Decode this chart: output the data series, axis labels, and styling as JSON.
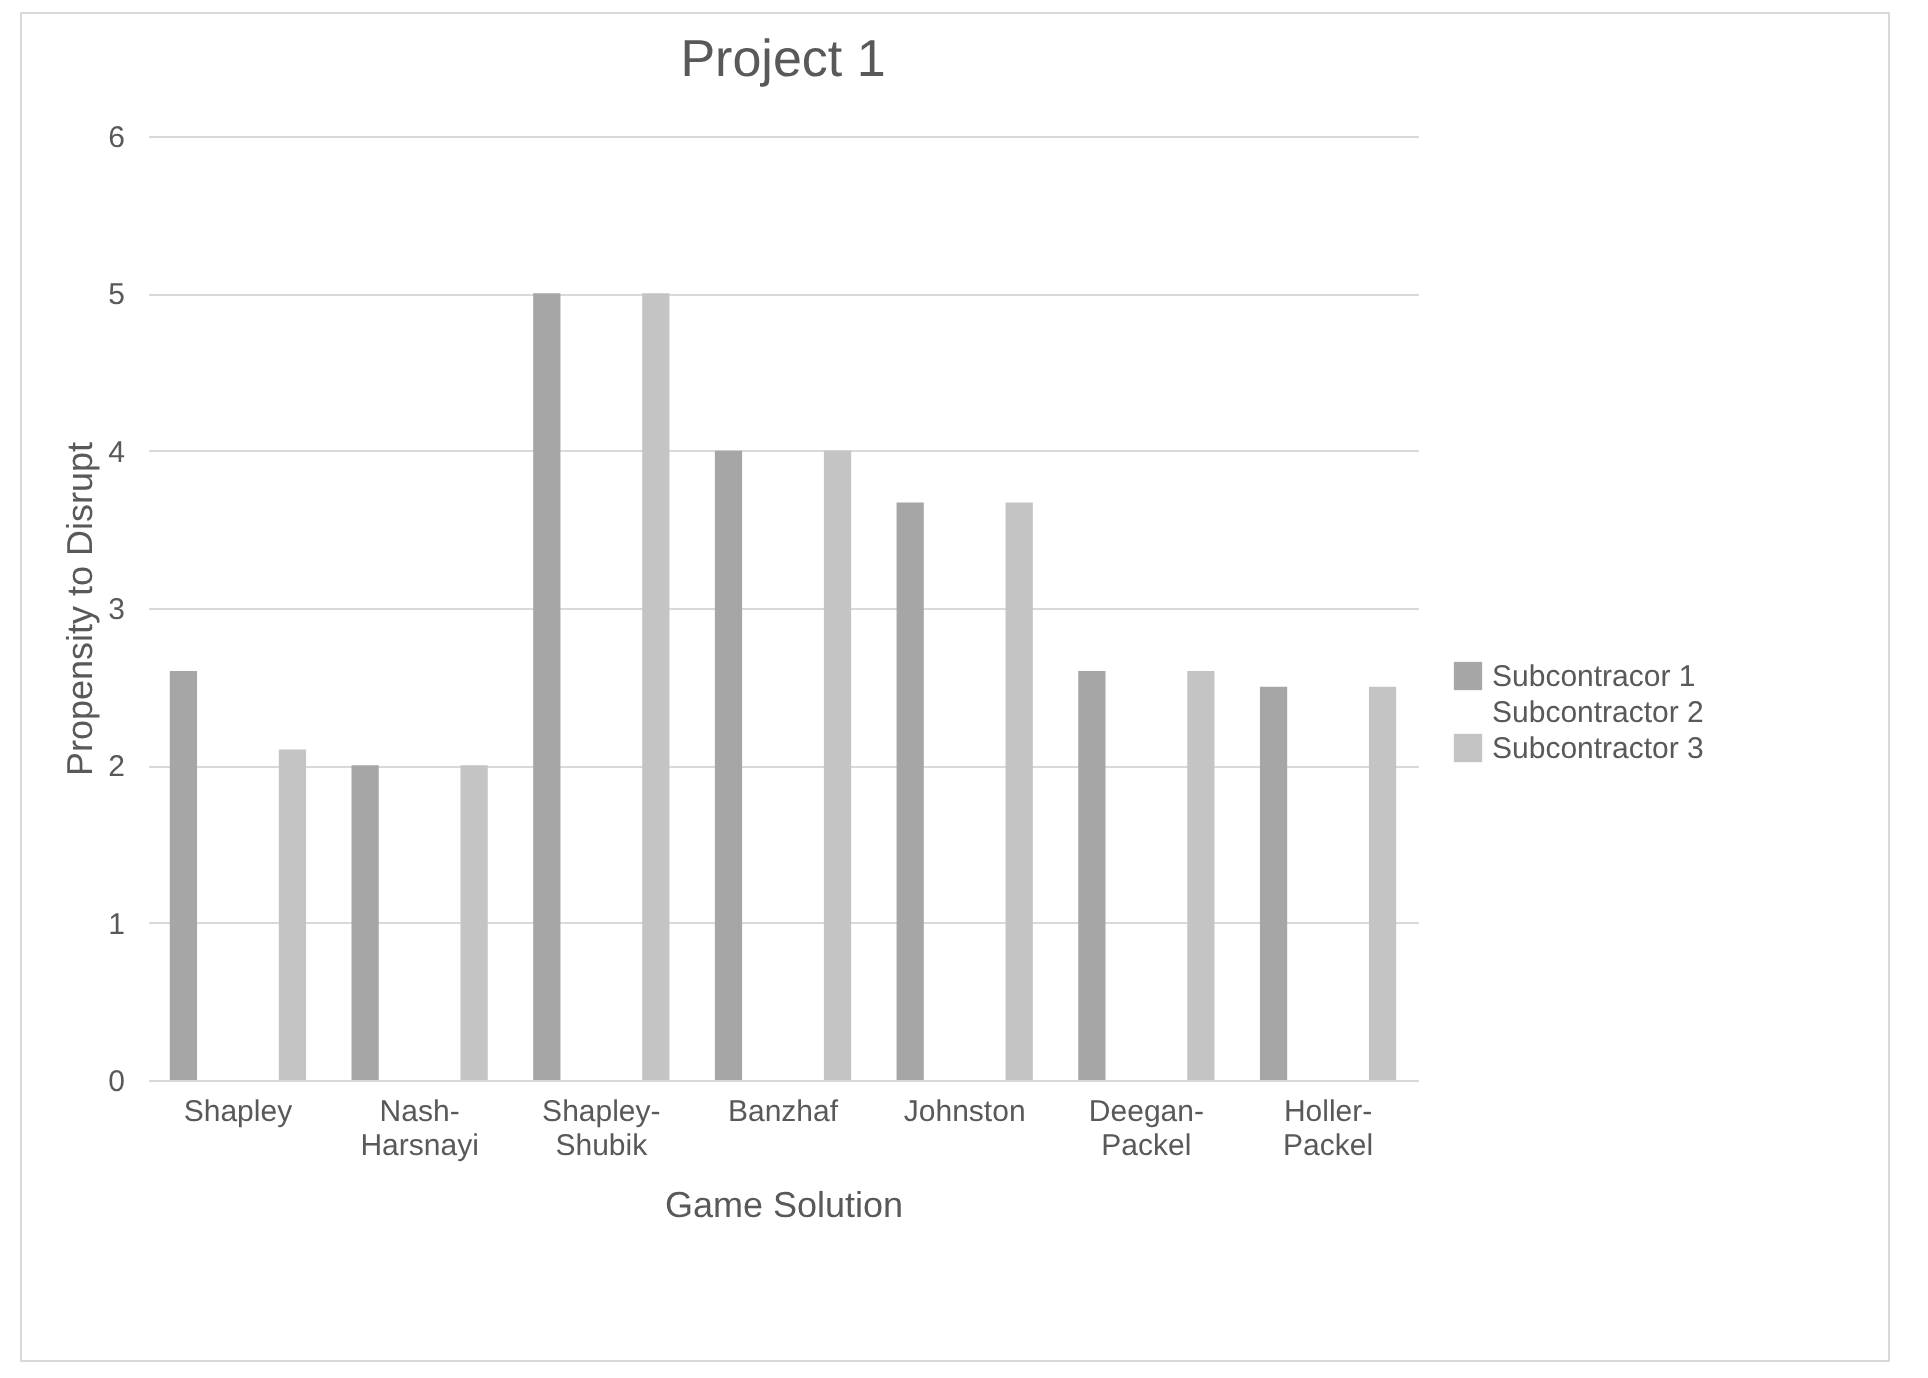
{
  "chart_data": {
    "type": "bar",
    "title": "Project 1",
    "xlabel": "Game Solution",
    "ylabel": "Propensity to Disrupt",
    "categories": [
      "Shapley",
      "Nash-Harsnayi",
      "Shapley-Shubik",
      "Banzhaf",
      "Johnston",
      "Deegan-Packel",
      "Holler-Packel"
    ],
    "series": [
      {
        "name": "Subcontracor 1",
        "color": "#a6a6a6",
        "values": [
          2.6,
          2,
          5,
          4,
          3.67,
          2.6,
          2.5
        ]
      },
      {
        "name": "Subcontractor 2",
        "values": [
          null,
          null,
          null,
          null,
          null,
          null,
          null
        ]
      },
      {
        "name": "Subcontractor 3",
        "color": "#c4c4c4",
        "values": [
          2.1,
          2,
          5,
          4,
          3.67,
          2.6,
          2.5
        ]
      }
    ],
    "ylim": [
      0,
      6
    ],
    "yticks": [
      0,
      1,
      2,
      3,
      4,
      5,
      6
    ],
    "grid": "y",
    "legend": "right"
  }
}
